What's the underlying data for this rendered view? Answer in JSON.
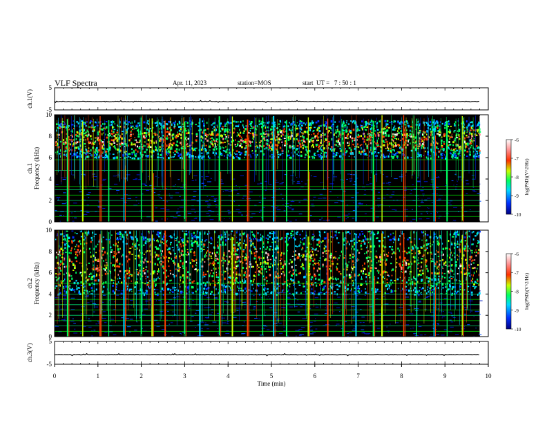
{
  "header": {
    "title": "VLF Spectra",
    "date": "Apr. 11, 2023",
    "station": "station=MOS",
    "start_ut": "start  UT =   7 : 50 : 1"
  },
  "colors": {
    "background": "#ffffff",
    "axis": "#000000",
    "spectrogram_bg": "#000000",
    "colormap": [
      "#000080",
      "#0030ff",
      "#00d8ff",
      "#00ff60",
      "#c8ff00",
      "#ff4000",
      "#ff9090",
      "#ffffff"
    ],
    "line_color": "#00ff00"
  },
  "chart_data": [
    {
      "id": "ch1-waveform",
      "type": "line",
      "ylabel": "ch.1(V)",
      "ylim": [
        -5,
        5
      ],
      "yticks": [
        "5",
        "-5"
      ],
      "xlim": [
        0,
        10
      ],
      "description_values": "flat trace near -1 V",
      "y_level": -1.2
    },
    {
      "id": "ch1-spectrogram",
      "type": "heatmap",
      "ylabel": "ch.1\nFrequency (kHz)",
      "ylabel_lines": [
        "ch.1",
        "Frequency (kHz)"
      ],
      "ylim": [
        0,
        10
      ],
      "yticks": [
        "0",
        "2",
        "4",
        "6",
        "8",
        "10"
      ],
      "xlim": [
        0,
        9.8
      ],
      "colorbar": {
        "label": "log(PSD)(V^2/Hz)",
        "range": [
          -10,
          -6
        ],
        "ticks": [
          "-6",
          "-7",
          "-8",
          "-9",
          "-10"
        ]
      },
      "spectral_band_khz": [
        6.0,
        9.5
      ],
      "horizontal_lines_khz": [
        0.5,
        1.0,
        1.5,
        2.0,
        2.5,
        3.0,
        3.3,
        4.8,
        5.8
      ],
      "vertical_spike_times_min": [
        0.3,
        0.65,
        1.05,
        1.25,
        1.6,
        2.0,
        2.25,
        2.55,
        3.0,
        3.35,
        3.8,
        4.1,
        4.45,
        4.8,
        5.05,
        5.35,
        5.85,
        6.3,
        6.65,
        6.95,
        7.35,
        7.55,
        8.05,
        8.35,
        8.75,
        9.05,
        9.4
      ]
    },
    {
      "id": "ch2-spectrogram",
      "type": "heatmap",
      "ylabel": "ch.2\nFrequency (kHz)",
      "ylabel_lines": [
        "ch.2",
        "Frequency (kHz)"
      ],
      "ylim": [
        0,
        10
      ],
      "yticks": [
        "0",
        "2",
        "4",
        "6",
        "8",
        "10"
      ],
      "xlim": [
        0,
        9.8
      ],
      "colorbar": {
        "label": "log(PSD)(V^2/Hz)",
        "range": [
          -10,
          -6
        ],
        "ticks": [
          "-6",
          "-7",
          "-8",
          "-9",
          "-10"
        ]
      },
      "spectral_band_khz": [
        4.0,
        10.0
      ],
      "horizontal_lines_khz": [
        0.5,
        1.0,
        1.5,
        2.0,
        2.5,
        3.0,
        3.5,
        4.0,
        5.0
      ],
      "vertical_spike_times_min": [
        0.3,
        0.65,
        1.05,
        1.25,
        1.6,
        2.0,
        2.25,
        2.55,
        3.0,
        3.35,
        3.8,
        4.1,
        4.45,
        4.8,
        5.05,
        5.35,
        5.85,
        6.3,
        6.65,
        6.95,
        7.35,
        7.55,
        8.05,
        8.35,
        8.75,
        9.05,
        9.4
      ]
    },
    {
      "id": "ch3-waveform",
      "type": "line",
      "ylabel": "ch.3(V)",
      "ylim": [
        -5,
        5
      ],
      "yticks": [
        "5",
        "-5"
      ],
      "xlim": [
        0,
        10
      ],
      "y_level": -0.8
    }
  ],
  "x_axis": {
    "label": "Time (min)",
    "range": [
      0,
      10
    ],
    "ticks": [
      "0",
      "1",
      "2",
      "3",
      "4",
      "5",
      "6",
      "7",
      "8",
      "9",
      "10"
    ]
  }
}
